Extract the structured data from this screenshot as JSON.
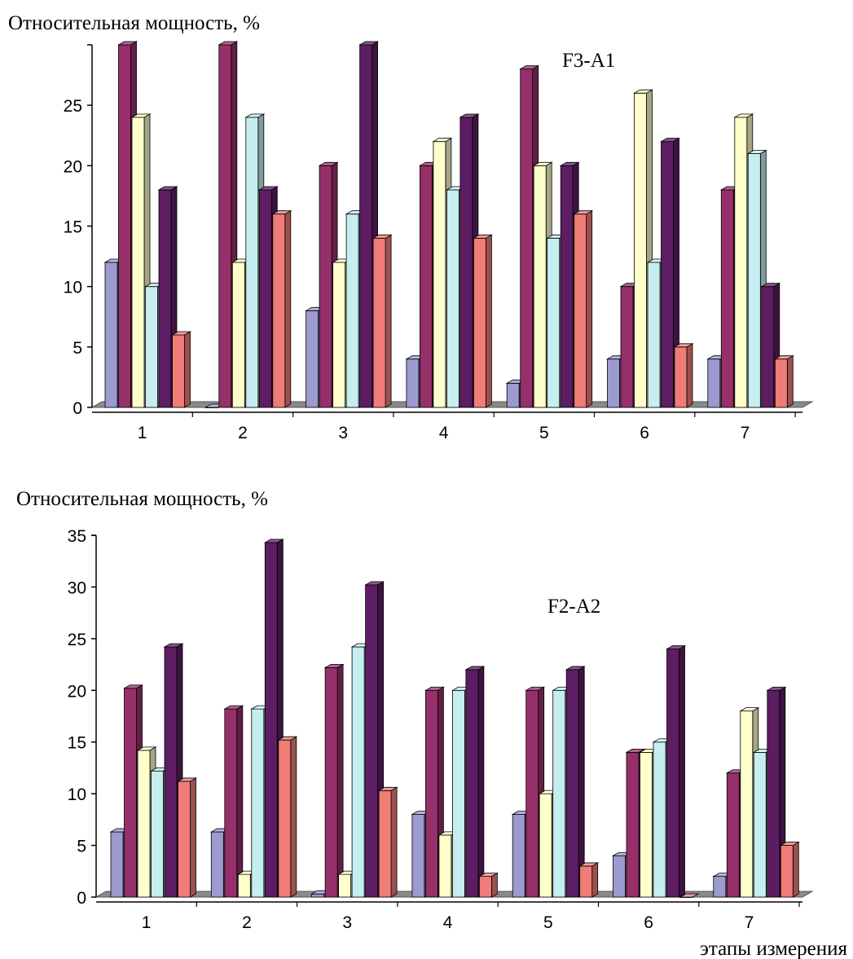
{
  "series_colors": [
    "#9b9bd0",
    "#96306a",
    "#ffffcc",
    "#c6eef0",
    "#5c1d63",
    "#f07c78"
  ],
  "chart_data": [
    {
      "type": "bar",
      "title": "F3-A1",
      "ylabel": "Относительная мощность, %",
      "xlabel": "",
      "categories": [
        "1",
        "2",
        "3",
        "4",
        "5",
        "6",
        "7"
      ],
      "yticks": [
        "0",
        "5",
        "10",
        "15",
        "20",
        "25"
      ],
      "ylim": [
        0,
        30
      ],
      "series": [
        {
          "values": [
            12,
            0,
            8,
            4,
            2,
            4,
            4
          ]
        },
        {
          "values": [
            30,
            30,
            20,
            20,
            28,
            10,
            18
          ]
        },
        {
          "values": [
            24,
            12,
            12,
            22,
            20,
            26,
            24
          ]
        },
        {
          "values": [
            10,
            24,
            16,
            18,
            14,
            12,
            21
          ]
        },
        {
          "values": [
            18,
            18,
            30,
            24,
            20,
            22,
            10
          ]
        },
        {
          "values": [
            6,
            16,
            14,
            14,
            16,
            5,
            4
          ]
        }
      ]
    },
    {
      "type": "bar",
      "title": "F2-A2",
      "ylabel": "Относительная мощность, %",
      "xlabel": "этапы измерения",
      "categories": [
        "1",
        "2",
        "3",
        "4",
        "5",
        "6",
        "7"
      ],
      "yticks": [
        "0",
        "5",
        "10",
        "15",
        "20",
        "25",
        "30",
        "35"
      ],
      "ylim": [
        0,
        35
      ],
      "series": [
        {
          "values": [
            6.3,
            6.3,
            0.3,
            8,
            8,
            4,
            2
          ]
        },
        {
          "values": [
            20.2,
            18.2,
            22.2,
            20,
            20,
            14,
            12
          ]
        },
        {
          "values": [
            14.2,
            2.2,
            2.2,
            6,
            10,
            14,
            18
          ]
        },
        {
          "values": [
            12.2,
            18.2,
            24.2,
            20,
            20,
            15,
            14
          ]
        },
        {
          "values": [
            24.2,
            34.3,
            30.2,
            22,
            22,
            24,
            20
          ]
        },
        {
          "values": [
            11.2,
            15.2,
            10.3,
            2,
            3,
            0,
            5
          ]
        }
      ]
    }
  ]
}
